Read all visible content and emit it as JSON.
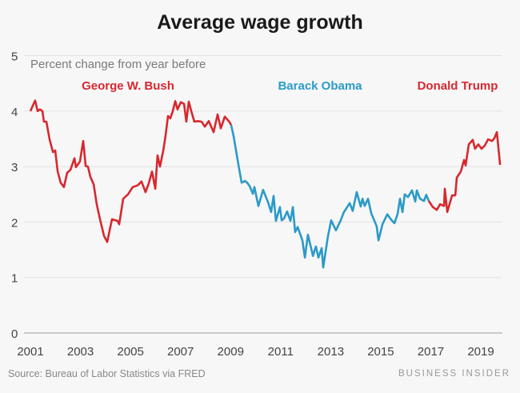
{
  "chart_data": {
    "type": "line",
    "title": "Average wage growth",
    "subtitle": "Percent change from year before",
    "xlabel": "",
    "ylabel": "Percent change from year before",
    "ylim": [
      0,
      5
    ],
    "xlim": [
      2001,
      2019.8
    ],
    "yticks": [
      "0",
      "1",
      "2",
      "3",
      "4",
      "5"
    ],
    "xticks": [
      "2001",
      "2003",
      "2005",
      "2007",
      "2009",
      "2011",
      "2013",
      "2015",
      "2017",
      "2019"
    ],
    "grid": true,
    "series": [
      {
        "name": "George W. Bush",
        "color": "#d7282f",
        "x": [
          2001.0,
          2001.19,
          2001.29,
          2001.38,
          2001.48,
          2001.54,
          2001.64,
          2001.77,
          2001.9,
          2001.99,
          2002.09,
          2002.21,
          2002.34,
          2002.47,
          2002.6,
          2002.76,
          2002.82,
          2002.98,
          2003.11,
          2003.21,
          2003.3,
          2003.4,
          2003.53,
          2003.65,
          2003.78,
          2003.94,
          2004.07,
          2004.26,
          2004.48,
          2004.55,
          2004.71,
          2004.9,
          2005.09,
          2005.28,
          2005.44,
          2005.6,
          2005.73,
          2005.86,
          2005.99,
          2006.08,
          2006.18,
          2006.31,
          2006.4,
          2006.5,
          2006.59,
          2006.69,
          2006.79,
          2006.88,
          2007.01,
          2007.14,
          2007.23,
          2007.33,
          2007.43,
          2007.55,
          2007.68,
          2007.84,
          2007.97,
          2008.13,
          2008.32,
          2008.48,
          2008.61,
          2008.77,
          2008.96,
          2009.02
        ],
        "y": [
          4.0,
          4.19,
          4.0,
          4.03,
          4.0,
          3.81,
          3.81,
          3.48,
          3.26,
          3.29,
          2.91,
          2.71,
          2.63,
          2.89,
          2.94,
          3.15,
          2.99,
          3.09,
          3.46,
          3.01,
          3.0,
          2.81,
          2.68,
          2.32,
          2.05,
          1.75,
          1.64,
          2.05,
          2.02,
          1.96,
          2.42,
          2.5,
          2.63,
          2.66,
          2.73,
          2.54,
          2.7,
          2.91,
          2.6,
          3.2,
          3.0,
          3.29,
          3.55,
          3.91,
          3.87,
          4.0,
          4.18,
          4.03,
          4.16,
          4.13,
          3.81,
          4.17,
          4.0,
          3.81,
          3.82,
          3.81,
          3.72,
          3.82,
          3.62,
          3.94,
          3.69,
          3.9,
          3.8,
          3.75
        ]
      },
      {
        "name": "Barack Obama",
        "color": "#2b9ac8",
        "x": [
          2009.02,
          2009.12,
          2009.28,
          2009.44,
          2009.57,
          2009.66,
          2009.76,
          2009.89,
          2009.95,
          2010.11,
          2010.3,
          2010.5,
          2010.62,
          2010.72,
          2010.81,
          2010.97,
          2011.04,
          2011.13,
          2011.26,
          2011.39,
          2011.49,
          2011.58,
          2011.68,
          2011.87,
          2011.97,
          2012.09,
          2012.29,
          2012.41,
          2012.51,
          2012.64,
          2012.7,
          2012.89,
          2013.02,
          2013.21,
          2013.4,
          2013.53,
          2013.63,
          2013.76,
          2013.88,
          2014.04,
          2014.2,
          2014.27,
          2014.36,
          2014.49,
          2014.62,
          2014.84,
          2014.91,
          2015.07,
          2015.26,
          2015.42,
          2015.55,
          2015.67,
          2015.77,
          2015.87,
          2015.96,
          2016.09,
          2016.25,
          2016.38,
          2016.44,
          2016.57,
          2016.73,
          2016.82,
          2016.92
        ],
        "y": [
          3.75,
          3.55,
          3.12,
          2.71,
          2.74,
          2.71,
          2.65,
          2.51,
          2.63,
          2.29,
          2.58,
          2.35,
          2.18,
          2.47,
          2.02,
          2.27,
          2.03,
          2.06,
          2.19,
          2.02,
          2.27,
          1.82,
          1.91,
          1.67,
          1.36,
          1.77,
          1.39,
          1.56,
          1.36,
          1.53,
          1.18,
          1.74,
          2.03,
          1.85,
          2.03,
          2.18,
          2.25,
          2.34,
          2.2,
          2.54,
          2.28,
          2.42,
          2.29,
          2.42,
          2.16,
          1.92,
          1.67,
          1.96,
          2.14,
          2.04,
          1.98,
          2.14,
          2.42,
          2.18,
          2.5,
          2.45,
          2.57,
          2.37,
          2.57,
          2.42,
          2.38,
          2.49,
          2.38
        ]
      },
      {
        "name": "Donald Trump",
        "color": "#d7282f",
        "x": [
          2016.92,
          2017.08,
          2017.24,
          2017.37,
          2017.53,
          2017.56,
          2017.66,
          2017.85,
          2017.98,
          2018.04,
          2018.2,
          2018.33,
          2018.39,
          2018.52,
          2018.68,
          2018.77,
          2018.9,
          2019.03,
          2019.16,
          2019.29,
          2019.45,
          2019.54,
          2019.64,
          2019.77
        ],
        "y": [
          2.38,
          2.27,
          2.22,
          2.32,
          2.29,
          2.6,
          2.18,
          2.48,
          2.48,
          2.8,
          2.91,
          3.12,
          3.02,
          3.4,
          3.48,
          3.32,
          3.4,
          3.32,
          3.38,
          3.49,
          3.46,
          3.51,
          3.62,
          3.03
        ]
      }
    ]
  },
  "footer": {
    "source": "Source: Bureau of Labor Statistics via FRED",
    "brand": "BUSINESS INSIDER"
  }
}
